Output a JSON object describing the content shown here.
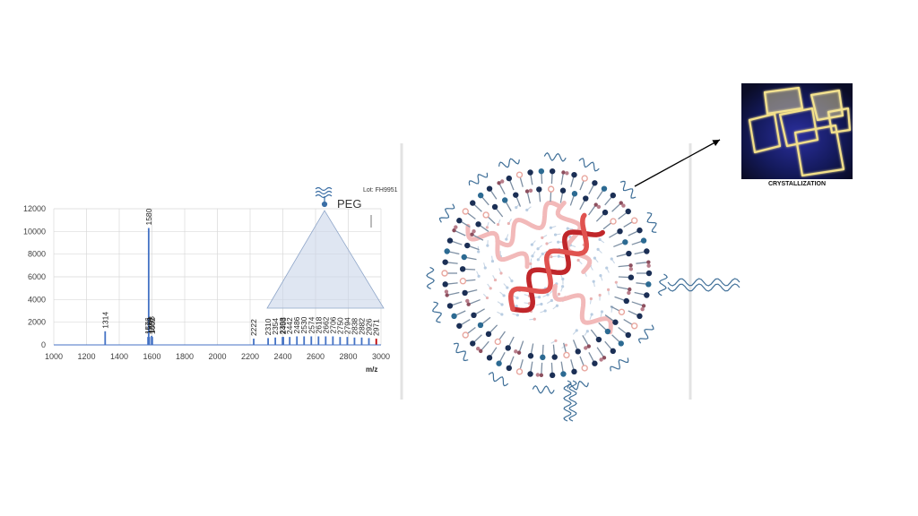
{
  "chart_data": {
    "type": "bar",
    "annotation_text": "PEG",
    "lot_text": "Lot: FH9951",
    "xlabel": "m/z",
    "xlim": [
      1000,
      3000
    ],
    "ylim": [
      0,
      12000
    ],
    "x_ticks": [
      "1000",
      "1200",
      "1400",
      "1600",
      "1800",
      "2000",
      "2200",
      "2400",
      "2600",
      "2800",
      "3000"
    ],
    "y_ticks": [
      "0",
      "2000",
      "4000",
      "6000",
      "8000",
      "10000",
      "12000"
    ],
    "grid": true,
    "series_color": "#4472c4",
    "highlight_color": "#c00000",
    "peaks": [
      {
        "mz": 1314,
        "intensity": 1200,
        "label": "1314"
      },
      {
        "mz": 1576,
        "intensity": 700,
        "label": "1576"
      },
      {
        "mz": 1580,
        "intensity": 10300,
        "label": "1580"
      },
      {
        "mz": 1584,
        "intensity": 700,
        "label": "1584"
      },
      {
        "mz": 1598,
        "intensity": 800,
        "label": "1598"
      },
      {
        "mz": 1602,
        "intensity": 700,
        "label": "1602"
      },
      {
        "mz": 2222,
        "intensity": 550,
        "label": "2222"
      },
      {
        "mz": 2310,
        "intensity": 600,
        "label": "2310"
      },
      {
        "mz": 2354,
        "intensity": 650,
        "label": "2354"
      },
      {
        "mz": 2398,
        "intensity": 700,
        "label": "2398"
      },
      {
        "mz": 2403,
        "intensity": 700,
        "label": "2403"
      },
      {
        "mz": 2442,
        "intensity": 700,
        "label": "2442"
      },
      {
        "mz": 2486,
        "intensity": 750,
        "label": "2486"
      },
      {
        "mz": 2530,
        "intensity": 750,
        "label": "2530"
      },
      {
        "mz": 2574,
        "intensity": 750,
        "label": "2574"
      },
      {
        "mz": 2618,
        "intensity": 750,
        "label": "2618"
      },
      {
        "mz": 2662,
        "intensity": 750,
        "label": "2662"
      },
      {
        "mz": 2706,
        "intensity": 750,
        "label": "2706"
      },
      {
        "mz": 2750,
        "intensity": 700,
        "label": "2750"
      },
      {
        "mz": 2794,
        "intensity": 700,
        "label": "2794"
      },
      {
        "mz": 2838,
        "intensity": 650,
        "label": "2838"
      },
      {
        "mz": 2882,
        "intensity": 650,
        "label": "2882"
      },
      {
        "mz": 2926,
        "intensity": 600,
        "label": "2926"
      },
      {
        "mz": 2971,
        "intensity": 550,
        "label": "2971",
        "highlight": true
      }
    ]
  },
  "crystallization_label": "CRYSTALLIZATION",
  "icons": [
    "peg-molecule-icon",
    "lipid-nanoparticle-illustration",
    "mrna-strand-icon",
    "crystal-micrograph-image",
    "arrow-icon"
  ]
}
